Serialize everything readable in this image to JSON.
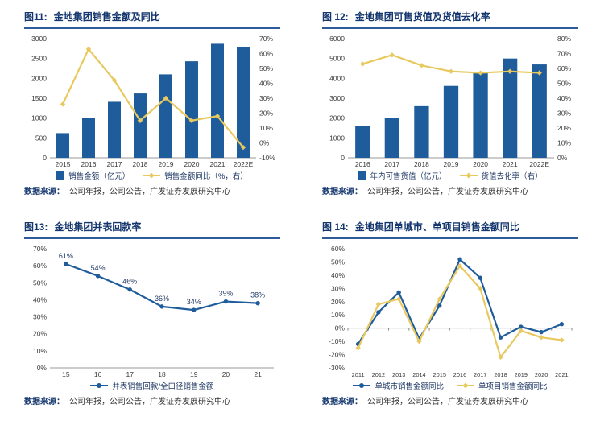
{
  "panels": [
    {
      "fig_label": "图11:",
      "title": "金地集团销售金额及同比",
      "source_label": "数据来源：",
      "source_text": "公司年报，公司公告，广发证券发展研究中心"
    },
    {
      "fig_label": "图 12:",
      "title": "金地集团可售货值及货值去化率",
      "source_label": "数据来源：",
      "source_text": "公司年报，公司公告，广发证券发展研究中心"
    },
    {
      "fig_label": "图13:",
      "title": "金地集团并表回款率",
      "source_label": "数据来源：",
      "source_text": "公司年报，公司公告，广发证券发展研究中心"
    },
    {
      "fig_label": "图 14:",
      "title": "金地集团单城市、单项目销售金额同比",
      "source_label": "数据来源：",
      "source_text": "公司年报，公司公告，广发证券发展研究中心"
    }
  ],
  "colors": {
    "bar_blue": "#1F5C9B",
    "line_yellow": "#E8C95F",
    "title_navy": "#14366E",
    "header_rule": "#2F5B9D"
  },
  "chart_data": [
    {
      "type": "bar",
      "title": "金地集团销售金额及同比",
      "categories": [
        "2015",
        "2016",
        "2017",
        "2018",
        "2019",
        "2020",
        "2021",
        "2022E"
      ],
      "bar_series": {
        "name": "销售金额（亿元）",
        "values": [
          620,
          1010,
          1410,
          1620,
          2100,
          2430,
          2870,
          2780
        ],
        "color": "#1F5C9B",
        "axis": "left"
      },
      "line_series": [
        {
          "name": "销售金额同比（%，右）",
          "values": [
            26,
            63,
            42,
            15,
            30,
            15,
            18,
            -3
          ],
          "color": "#E8C95F",
          "axis": "right",
          "marker": "diamond"
        }
      ],
      "y_left": {
        "min": 0,
        "max": 3000,
        "step": 500,
        "percent": false
      },
      "y_right": {
        "min": -10,
        "max": 70,
        "step": 10,
        "percent": true
      },
      "legend_position": "bottom",
      "grid": false
    },
    {
      "type": "bar",
      "title": "金地集团可售货值及货值去化率",
      "categories": [
        "2016",
        "2017",
        "2018",
        "2019",
        "2020",
        "2021",
        "2022E"
      ],
      "bar_series": {
        "name": "年内可售货值（亿元）",
        "values": [
          1600,
          2000,
          2600,
          3620,
          4300,
          5000,
          4700
        ],
        "color": "#1F5C9B",
        "axis": "left"
      },
      "line_series": [
        {
          "name": "货值去化率（右）",
          "values": [
            63,
            69,
            62,
            58,
            57,
            58,
            57
          ],
          "color": "#E8C95F",
          "axis": "right",
          "marker": "diamond"
        }
      ],
      "y_left": {
        "min": 0,
        "max": 6000,
        "step": 1000,
        "percent": false
      },
      "y_right": {
        "min": 0,
        "max": 80,
        "step": 10,
        "percent": true
      },
      "legend_position": "bottom",
      "grid": false
    },
    {
      "type": "line",
      "title": "金地集团并表回款率",
      "categories": [
        "15",
        "16",
        "17",
        "18",
        "19",
        "20",
        "21"
      ],
      "line_series": [
        {
          "name": "并表销售回款/全口径销售金额",
          "values": [
            61,
            54,
            46,
            36,
            34,
            39,
            38
          ],
          "color": "#1F5C9B",
          "axis": "left",
          "marker": "circle",
          "labels": true
        }
      ],
      "y_left": {
        "min": 0,
        "max": 70,
        "step": 10,
        "percent": true
      },
      "legend_position": "bottom",
      "grid": false
    },
    {
      "type": "line",
      "title": "金地集团单城市、单项目销售金额同比",
      "categories": [
        "2011",
        "2012",
        "2013",
        "2014",
        "2015",
        "2016",
        "2017",
        "2018",
        "2019",
        "2020",
        "2021"
      ],
      "line_series": [
        {
          "name": "单城市销售金额同比",
          "values": [
            -12,
            12,
            27,
            -8,
            17,
            52,
            38,
            -7,
            1,
            -3,
            3
          ],
          "color": "#1F5C9B",
          "axis": "left",
          "marker": "circle"
        },
        {
          "name": "单项目销售金额同比",
          "values": [
            -15,
            18,
            22,
            -10,
            22,
            47,
            30,
            -22,
            -2,
            -7,
            -9
          ],
          "color": "#E8C95F",
          "axis": "left",
          "marker": "diamond"
        }
      ],
      "y_left": {
        "min": -30,
        "max": 60,
        "step": 10,
        "percent": true
      },
      "zero_axis": true,
      "legend_position": "bottom",
      "grid": false
    }
  ]
}
